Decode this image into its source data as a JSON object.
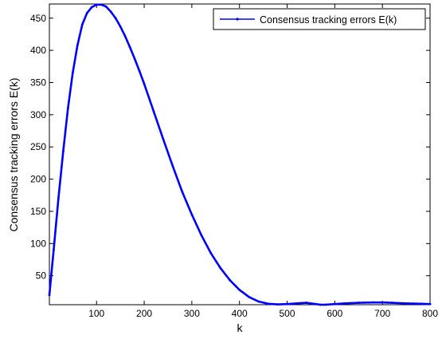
{
  "chart_data": {
    "type": "line",
    "title": "",
    "xlabel": "k",
    "ylabel": "Consensus tracking errors E(k)",
    "xlim": [
      1,
      800
    ],
    "ylim": [
      5,
      472
    ],
    "xticks": [
      100,
      200,
      300,
      400,
      500,
      600,
      700,
      800
    ],
    "yticks": [
      50,
      100,
      150,
      200,
      250,
      300,
      350,
      400,
      450
    ],
    "grid": false,
    "legend": {
      "position": "top-right"
    },
    "series": [
      {
        "name": "Consensus tracking errors E(k)",
        "color": "#0000ff",
        "marker": "dot",
        "x": [
          1,
          10,
          20,
          30,
          40,
          50,
          60,
          70,
          80,
          90,
          100,
          110,
          120,
          130,
          140,
          150,
          160,
          170,
          180,
          190,
          200,
          220,
          240,
          260,
          280,
          300,
          320,
          340,
          360,
          380,
          400,
          420,
          440,
          460,
          480,
          500,
          520,
          540,
          560,
          570,
          580,
          600,
          620,
          650,
          680,
          700,
          720,
          750,
          780,
          800
        ],
        "y": [
          20,
          90,
          170,
          243,
          310,
          365,
          408,
          440,
          458,
          467,
          471,
          471,
          468,
          460,
          450,
          437,
          422,
          405,
          387,
          368,
          348,
          305,
          262,
          220,
          180,
          145,
          113,
          85,
          62,
          43,
          28,
          17,
          10,
          6.5,
          5.5,
          6,
          7,
          8,
          6,
          5,
          5,
          6,
          7,
          8,
          8.5,
          8.5,
          8,
          7,
          6.5,
          6
        ]
      }
    ]
  }
}
